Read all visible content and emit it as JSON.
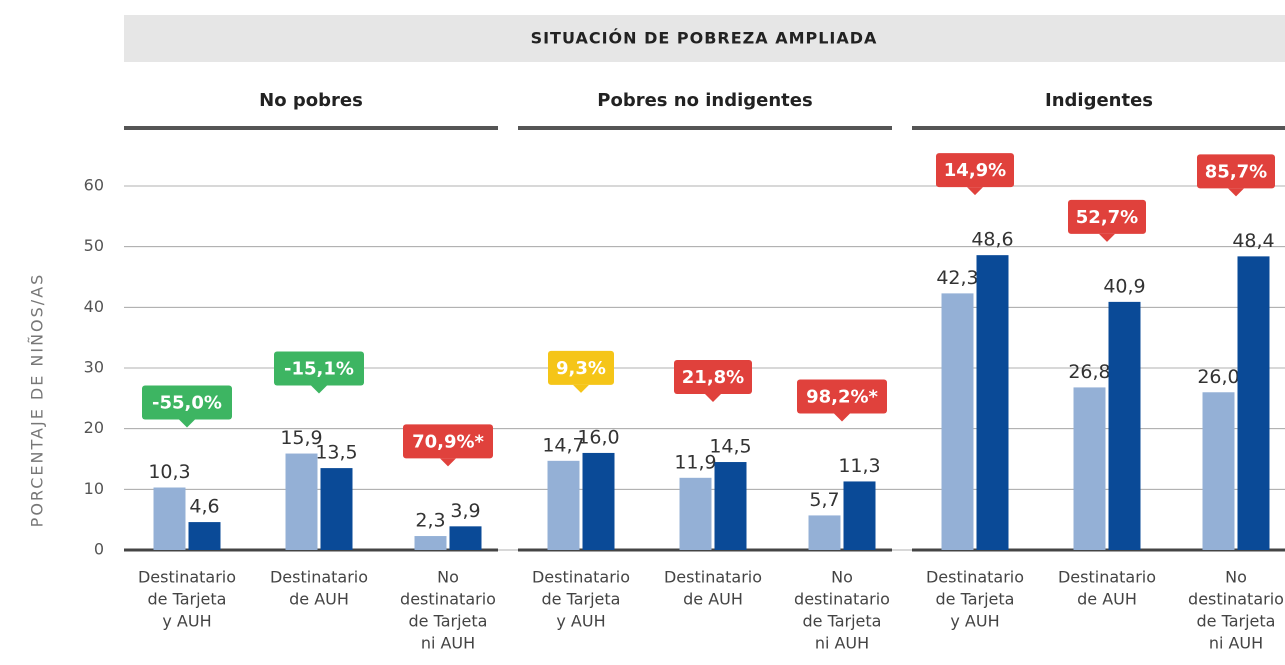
{
  "chart_data": {
    "type": "bar",
    "header": "SITUACIÓN DE POBREZA AMPLIADA",
    "ylabel": "PORCENTAJE DE NIÑOS/AS",
    "groups": [
      "No pobres",
      "Pobres no indigentes",
      "Indigentes"
    ],
    "categories": [
      [
        "Destinatario",
        "de Tarjeta",
        "y AUH"
      ],
      [
        "Destinatario",
        "de AUH"
      ],
      [
        "No",
        "destinatario",
        "de Tarjeta",
        "ni AUH"
      ],
      [
        "Destinatario",
        "de Tarjeta",
        "y AUH"
      ],
      [
        "Destinatario",
        "de AUH"
      ],
      [
        "No",
        "destinatario",
        "de Tarjeta",
        "ni AUH"
      ],
      [
        "Destinatario",
        "de Tarjeta",
        "y AUH"
      ],
      [
        "Destinatario",
        "de AUH"
      ],
      [
        "No",
        "destinatario",
        "de Tarjeta",
        "ni AUH"
      ]
    ],
    "series": [
      {
        "color": "#94b0d6",
        "values": [
          10.3,
          15.9,
          2.3,
          14.7,
          11.9,
          5.7,
          42.3,
          26.8,
          26.0
        ],
        "value_labels": [
          "10,3",
          "15,9",
          "2,3",
          "14,7",
          "11,9",
          "5,7",
          "42,3",
          "26,8",
          "26,0"
        ]
      },
      {
        "color": "#0a4a97",
        "values": [
          4.6,
          13.5,
          3.9,
          16.0,
          14.5,
          11.3,
          48.6,
          40.9,
          48.4
        ],
        "value_labels": [
          "4,6",
          "13,5",
          "3,9",
          "16,0",
          "14,5",
          "11,3",
          "48,6",
          "40,9",
          "48,4"
        ]
      }
    ],
    "annotations": [
      {
        "label": "-55,0%",
        "color": "#3db562"
      },
      {
        "label": "-15,1%",
        "color": "#3db562"
      },
      {
        "label": "70,9%*",
        "color": "#e0413c"
      },
      {
        "label": "9,3%",
        "color": "#f5c518"
      },
      {
        "label": "21,8%",
        "color": "#e0413c"
      },
      {
        "label": "98,2%*",
        "color": "#e0413c"
      },
      {
        "label": "14,9%",
        "color": "#e0413c"
      },
      {
        "label": "52,7%",
        "color": "#e0413c"
      },
      {
        "label": "85,7%",
        "color": "#e0413c"
      }
    ],
    "ylim": [
      0,
      60
    ],
    "yticks": [
      0,
      10,
      20,
      30,
      40,
      50,
      60
    ],
    "grid": true
  }
}
